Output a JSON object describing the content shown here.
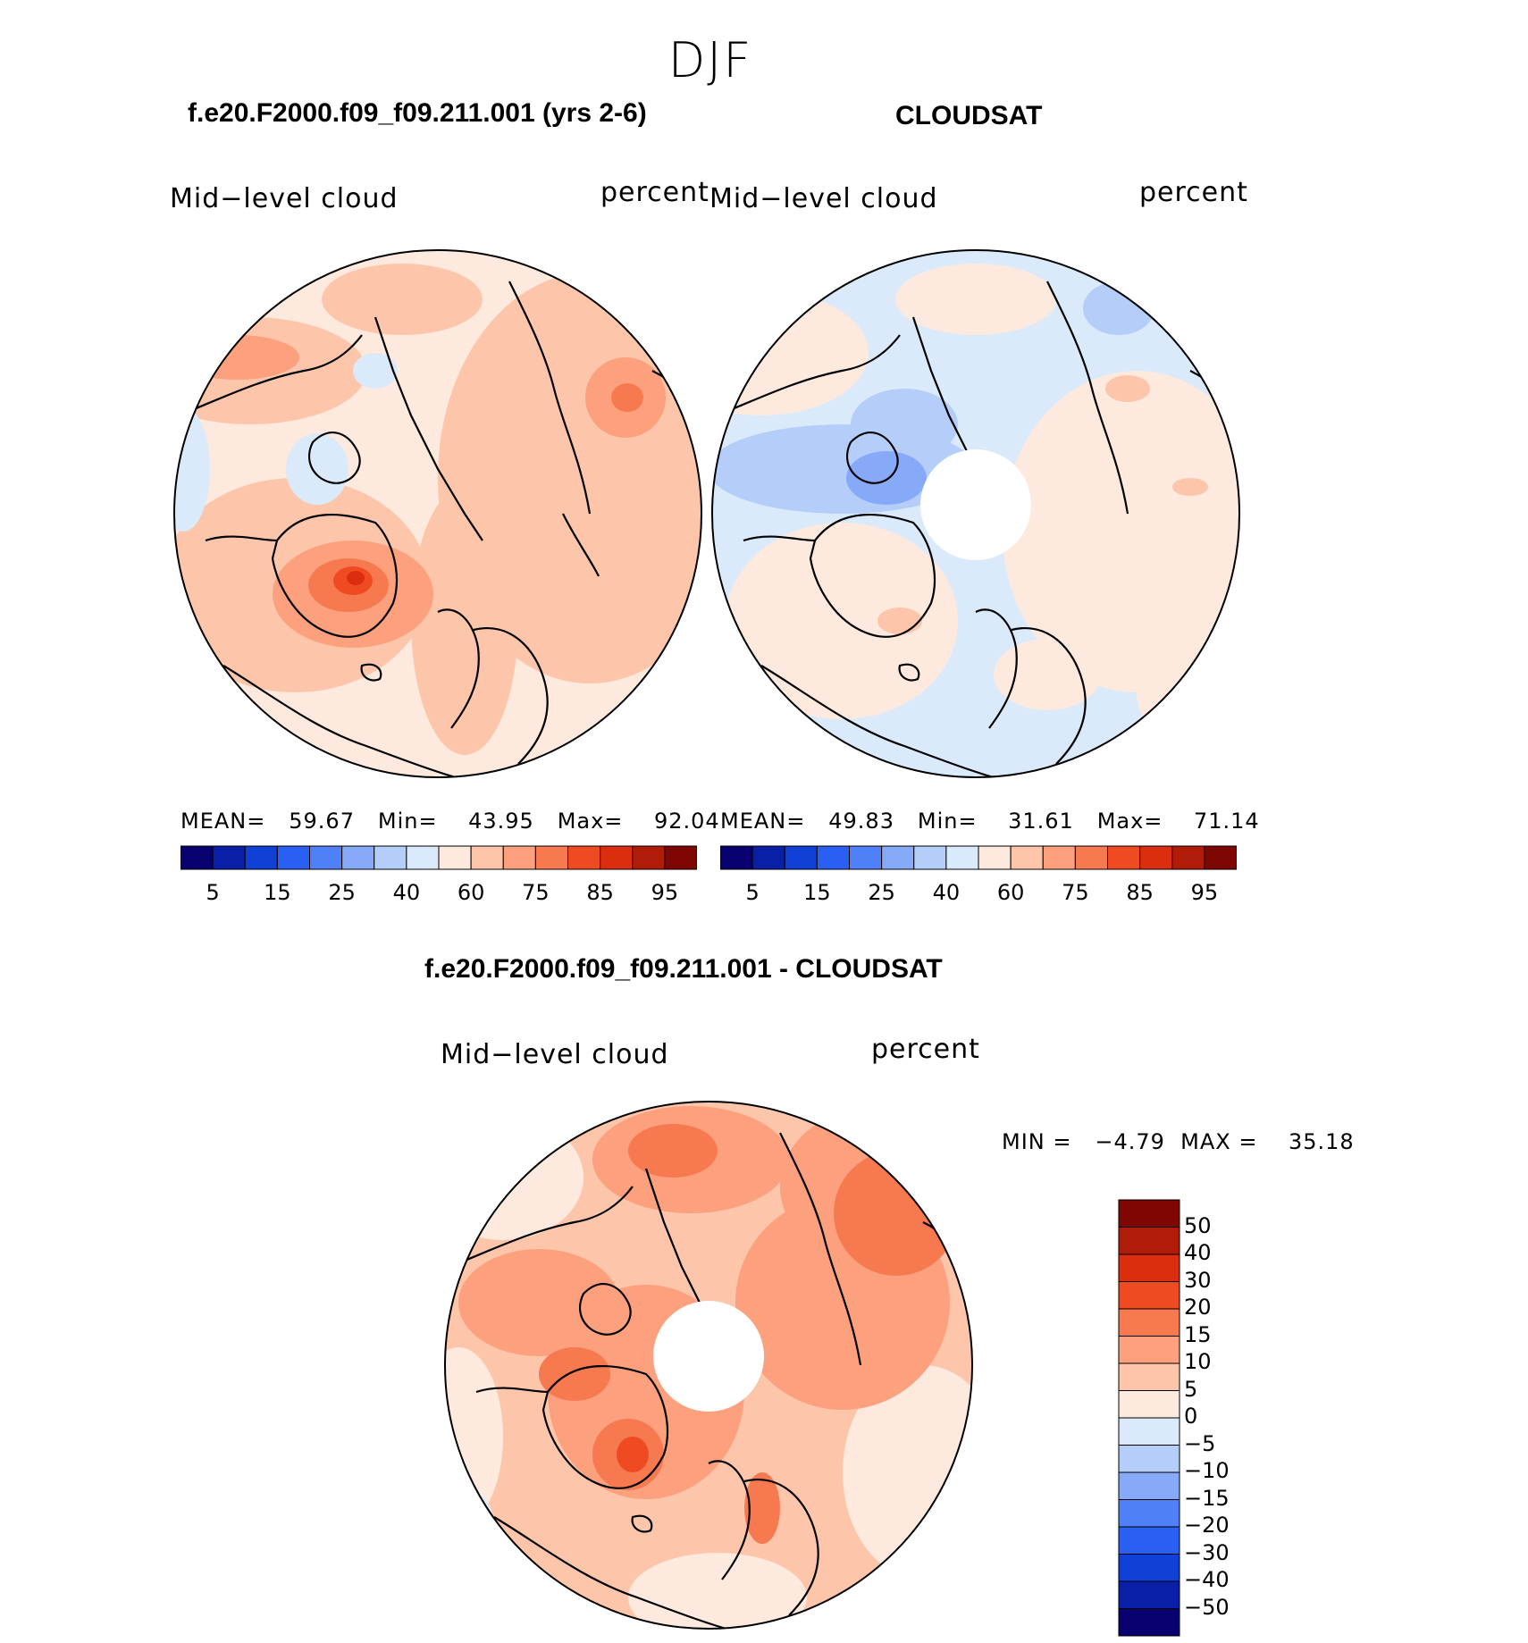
{
  "season": "DJF",
  "panels": [
    {
      "title": "f.e20.F2000.f09_f09.211.001 (yrs 2-6)",
      "left_label": "Mid−level cloud",
      "right_label": "percent",
      "stats": {
        "mean_label": "MEAN=",
        "mean": "59.67",
        "min_label": "Min=",
        "min": "43.95",
        "max_label": "Max=",
        "max": "92.04"
      }
    },
    {
      "title": "CLOUDSAT",
      "left_label": "Mid−level cloud",
      "right_label": "percent",
      "stats": {
        "mean_label": "MEAN=",
        "mean": "49.83",
        "min_label": "Min=",
        "min": "31.61",
        "max_label": "Max=",
        "max": "71.14"
      }
    },
    {
      "title": "f.e20.F2000.f09_f09.211.001 - CLOUDSAT",
      "left_label": "Mid−level cloud",
      "right_label": "percent",
      "stats": {
        "text": "MIN =   −4.79  MAX =    35.18"
      }
    }
  ],
  "abs_colorbar": {
    "colors": [
      "#08006e",
      "#0a1fa8",
      "#1140d6",
      "#2a60f2",
      "#4f80f7",
      "#86a9f8",
      "#b4cdf9",
      "#dbeafb",
      "#fde9dd",
      "#fdc6aa",
      "#fca07d",
      "#f6794f",
      "#f04a23",
      "#db2e0e",
      "#b01c08",
      "#7e0603"
    ],
    "tick_labels": [
      "5",
      "15",
      "25",
      "40",
      "60",
      "75",
      "85",
      "95"
    ]
  },
  "diff_colorbar": {
    "colors": [
      "#7e0603",
      "#b01c08",
      "#db2e0e",
      "#f04a23",
      "#f6794f",
      "#fca07d",
      "#fdc6aa",
      "#fde9dd",
      "#dbeafb",
      "#b4cdf9",
      "#86a9f8",
      "#4f80f7",
      "#2a60f2",
      "#1140d6",
      "#0a1fa8",
      "#08006e"
    ],
    "tick_labels": [
      "50",
      "40",
      "30",
      "20",
      "15",
      "10",
      "5",
      "0",
      "−5",
      "−10",
      "−15",
      "−20",
      "−30",
      "−40",
      "−50"
    ]
  },
  "chart_data": [
    {
      "type": "heatmap",
      "projection": "north polar stereographic",
      "title": "f.e20.F2000.f09_f09.211.001 (yrs 2-6)",
      "variable": "Mid−level cloud",
      "units": "percent",
      "mean": 59.67,
      "min": 43.95,
      "max": 92.04,
      "contour_levels": [
        5,
        10,
        15,
        20,
        25,
        30,
        40,
        50,
        60,
        70,
        75,
        80,
        85,
        90,
        95
      ]
    },
    {
      "type": "heatmap",
      "projection": "north polar stereographic",
      "title": "CLOUDSAT",
      "variable": "Mid−level cloud",
      "units": "percent",
      "mean": 49.83,
      "min": 31.61,
      "max": 71.14,
      "contour_levels": [
        5,
        10,
        15,
        20,
        25,
        30,
        40,
        50,
        60,
        70,
        75,
        80,
        85,
        90,
        95
      ]
    },
    {
      "type": "heatmap",
      "projection": "north polar stereographic",
      "title": "f.e20.F2000.f09_f09.211.001 - CLOUDSAT",
      "variable": "Mid−level cloud",
      "units": "percent",
      "min": -4.79,
      "max": 35.18,
      "contour_levels": [
        -50,
        -40,
        -30,
        -20,
        -15,
        -10,
        -5,
        0,
        5,
        10,
        15,
        20,
        30,
        40,
        50
      ]
    }
  ]
}
